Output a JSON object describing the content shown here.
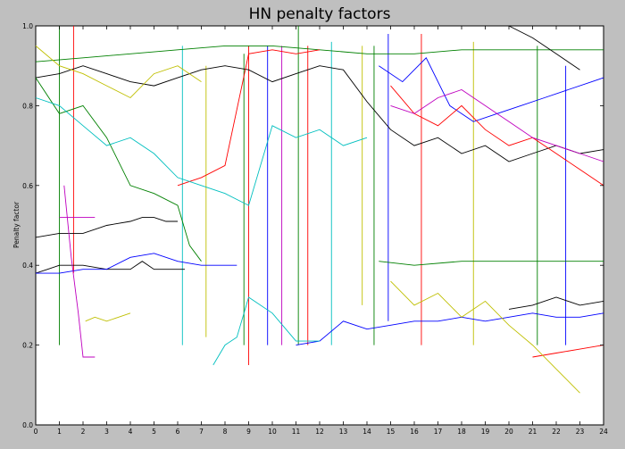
{
  "chart_data": {
    "type": "line",
    "title": "HN penalty factors",
    "xlabel": "",
    "ylabel": "Penalty factor",
    "xlim": [
      0,
      24
    ],
    "ylim": [
      0.0,
      1.0
    ],
    "x_ticks": [
      "0",
      "1",
      "2",
      "3",
      "4",
      "5",
      "6",
      "7",
      "8",
      "9",
      "10",
      "11",
      "12",
      "13",
      "14",
      "15",
      "16",
      "17",
      "18",
      "19",
      "20",
      "21",
      "22",
      "23",
      "24"
    ],
    "y_ticks": [
      "0.0",
      "0.2",
      "0.4",
      "0.6",
      "0.8",
      "1.0"
    ],
    "grid": false,
    "legend": false,
    "series": [
      {
        "color": "#000000",
        "x": [
          0,
          1,
          2,
          3,
          4,
          4.5,
          5,
          5.5,
          6
        ],
        "y": [
          0.47,
          0.48,
          0.48,
          0.5,
          0.51,
          0.52,
          0.52,
          0.51,
          0.51
        ]
      },
      {
        "color": "#000000",
        "x": [
          0,
          0.5,
          1,
          2,
          3,
          4,
          4.5,
          5,
          6,
          6.3
        ],
        "y": [
          0.38,
          0.39,
          0.4,
          0.4,
          0.39,
          0.39,
          0.41,
          0.39,
          0.39,
          0.39
        ]
      },
      {
        "color": "#000000",
        "x": [
          0,
          1,
          2,
          3,
          4,
          5,
          6,
          7,
          8,
          9,
          10,
          11,
          12,
          13,
          14,
          15,
          16,
          17,
          18,
          19,
          20,
          21,
          22,
          23,
          24
        ],
        "y": [
          0.87,
          0.88,
          0.9,
          0.88,
          0.86,
          0.85,
          0.87,
          0.89,
          0.9,
          0.89,
          0.86,
          0.88,
          0.9,
          0.89,
          0.81,
          0.74,
          0.7,
          0.72,
          0.68,
          0.7,
          0.66,
          0.68,
          0.7,
          0.68,
          0.69
        ]
      },
      {
        "color": "#000000",
        "x": [
          20,
          21,
          22,
          23,
          24
        ],
        "y": [
          0.29,
          0.3,
          0.32,
          0.3,
          0.31
        ]
      },
      {
        "color": "#0000ff",
        "x": [
          0,
          1,
          2,
          3,
          4,
          5,
          6,
          7,
          8,
          8.5
        ],
        "y": [
          0.38,
          0.38,
          0.39,
          0.39,
          0.42,
          0.43,
          0.41,
          0.4,
          0.4,
          0.4
        ]
      },
      {
        "color": "#0000ff",
        "x": [
          11,
          12,
          13,
          14,
          15,
          16,
          17,
          18,
          19,
          20,
          21,
          22,
          23,
          24
        ],
        "y": [
          0.2,
          0.21,
          0.26,
          0.24,
          0.25,
          0.26,
          0.26,
          0.27,
          0.26,
          0.27,
          0.28,
          0.27,
          0.27,
          0.28
        ]
      },
      {
        "color": "#0000ff",
        "x": [
          14.5,
          15.5,
          16.5,
          17.5,
          18.5,
          19.5,
          20.5,
          21.5,
          22.5,
          23.5,
          24
        ],
        "y": [
          0.9,
          0.86,
          0.92,
          0.8,
          0.76,
          0.78,
          0.8,
          0.82,
          0.84,
          0.86,
          0.87
        ]
      },
      {
        "color": "#008000",
        "x": [
          0,
          1,
          2,
          3,
          4,
          5,
          6,
          6.5,
          7
        ],
        "y": [
          0.87,
          0.78,
          0.8,
          0.72,
          0.6,
          0.58,
          0.55,
          0.45,
          0.41
        ]
      },
      {
        "color": "#008000",
        "x": [
          14.5,
          16,
          18,
          20,
          22,
          24
        ],
        "y": [
          0.41,
          0.4,
          0.41,
          0.41,
          0.41,
          0.41
        ]
      },
      {
        "color": "#008000",
        "x": [
          0,
          2,
          4,
          6,
          8,
          10,
          12,
          14,
          16,
          18,
          20,
          22,
          24
        ],
        "y": [
          0.91,
          0.92,
          0.93,
          0.94,
          0.95,
          0.95,
          0.94,
          0.93,
          0.93,
          0.94,
          0.94,
          0.94,
          0.94
        ]
      },
      {
        "color": "#ff0000",
        "x": [
          15,
          16,
          17,
          18,
          19,
          20,
          21,
          22,
          23,
          24
        ],
        "y": [
          0.85,
          0.78,
          0.75,
          0.8,
          0.74,
          0.7,
          0.72,
          0.68,
          0.64,
          0.6
        ]
      },
      {
        "color": "#ff0000",
        "x": [
          21,
          22,
          23,
          24
        ],
        "y": [
          0.17,
          0.18,
          0.19,
          0.2
        ]
      },
      {
        "color": "#ff0000",
        "x": [
          6,
          7,
          8,
          9,
          10,
          11,
          12
        ],
        "y": [
          0.6,
          0.62,
          0.65,
          0.93,
          0.94,
          0.93,
          0.94
        ]
      },
      {
        "color": "#00bfbf",
        "x": [
          0,
          1,
          2,
          3,
          4,
          5,
          6,
          7,
          8,
          9,
          10,
          11,
          12,
          13,
          14
        ],
        "y": [
          0.82,
          0.8,
          0.75,
          0.7,
          0.72,
          0.68,
          0.62,
          0.6,
          0.58,
          0.55,
          0.75,
          0.72,
          0.74,
          0.7,
          0.72
        ]
      },
      {
        "color": "#00bfbf",
        "x": [
          7.5,
          8,
          8.5,
          9,
          10,
          11,
          12
        ],
        "y": [
          0.15,
          0.2,
          0.22,
          0.32,
          0.28,
          0.21,
          0.21
        ]
      },
      {
        "color": "#bf00bf",
        "x": [
          1,
          1.5,
          2,
          2.5
        ],
        "y": [
          0.52,
          0.52,
          0.52,
          0.52
        ]
      },
      {
        "color": "#bf00bf",
        "x": [
          1.2,
          1.5,
          1.8,
          2.0,
          2.5
        ],
        "y": [
          0.6,
          0.42,
          0.28,
          0.17,
          0.17
        ]
      },
      {
        "color": "#bf00bf",
        "x": [
          15,
          16,
          17,
          18,
          19,
          20,
          21,
          22,
          23,
          24
        ],
        "y": [
          0.8,
          0.78,
          0.82,
          0.84,
          0.8,
          0.76,
          0.72,
          0.7,
          0.68,
          0.66
        ]
      },
      {
        "color": "#bfbf00",
        "x": [
          2.1,
          2.5,
          3,
          3.5,
          4
        ],
        "y": [
          0.26,
          0.27,
          0.26,
          0.27,
          0.28
        ]
      },
      {
        "color": "#bfbf00",
        "x": [
          15,
          16,
          17,
          18,
          19,
          20,
          21,
          22,
          23
        ],
        "y": [
          0.36,
          0.3,
          0.33,
          0.27,
          0.31,
          0.25,
          0.2,
          0.14,
          0.08
        ]
      },
      {
        "color": "#bfbf00",
        "x": [
          0,
          1,
          2,
          3,
          4,
          5,
          6,
          7
        ],
        "y": [
          0.95,
          0.9,
          0.88,
          0.85,
          0.82,
          0.88,
          0.9,
          0.86
        ]
      },
      {
        "color": "#000000",
        "x": [
          20,
          21,
          22,
          23
        ],
        "y": [
          1.0,
          0.97,
          0.93,
          0.89
        ]
      }
    ],
    "vertical_segments": [
      {
        "color": "#008000",
        "x": 1.0,
        "y": [
          0.2,
          1.0
        ]
      },
      {
        "color": "#ff0000",
        "x": 1.6,
        "y": [
          0.38,
          1.0
        ]
      },
      {
        "color": "#00bfbf",
        "x": 6.2,
        "y": [
          0.2,
          0.95
        ]
      },
      {
        "color": "#bfbf00",
        "x": 7.2,
        "y": [
          0.22,
          0.9
        ]
      },
      {
        "color": "#008000",
        "x": 8.8,
        "y": [
          0.2,
          0.93
        ]
      },
      {
        "color": "#ff0000",
        "x": 9.0,
        "y": [
          0.15,
          0.95
        ]
      },
      {
        "color": "#0000ff",
        "x": 9.8,
        "y": [
          0.2,
          0.95
        ]
      },
      {
        "color": "#bf00bf",
        "x": 10.4,
        "y": [
          0.2,
          0.95
        ]
      },
      {
        "color": "#008000",
        "x": 11.1,
        "y": [
          0.2,
          1.0
        ]
      },
      {
        "color": "#ff0000",
        "x": 11.5,
        "y": [
          0.2,
          0.95
        ]
      },
      {
        "color": "#00bfbf",
        "x": 12.5,
        "y": [
          0.2,
          0.96
        ]
      },
      {
        "color": "#bfbf00",
        "x": 13.8,
        "y": [
          0.3,
          0.95
        ]
      },
      {
        "color": "#008000",
        "x": 14.3,
        "y": [
          0.2,
          0.95
        ]
      },
      {
        "color": "#0000ff",
        "x": 14.9,
        "y": [
          0.26,
          0.98
        ]
      },
      {
        "color": "#ff0000",
        "x": 16.3,
        "y": [
          0.2,
          0.98
        ]
      },
      {
        "color": "#bfbf00",
        "x": 18.5,
        "y": [
          0.2,
          0.96
        ]
      },
      {
        "color": "#008000",
        "x": 21.2,
        "y": [
          0.2,
          0.95
        ]
      },
      {
        "color": "#0000ff",
        "x": 22.4,
        "y": [
          0.2,
          0.9
        ]
      }
    ]
  }
}
